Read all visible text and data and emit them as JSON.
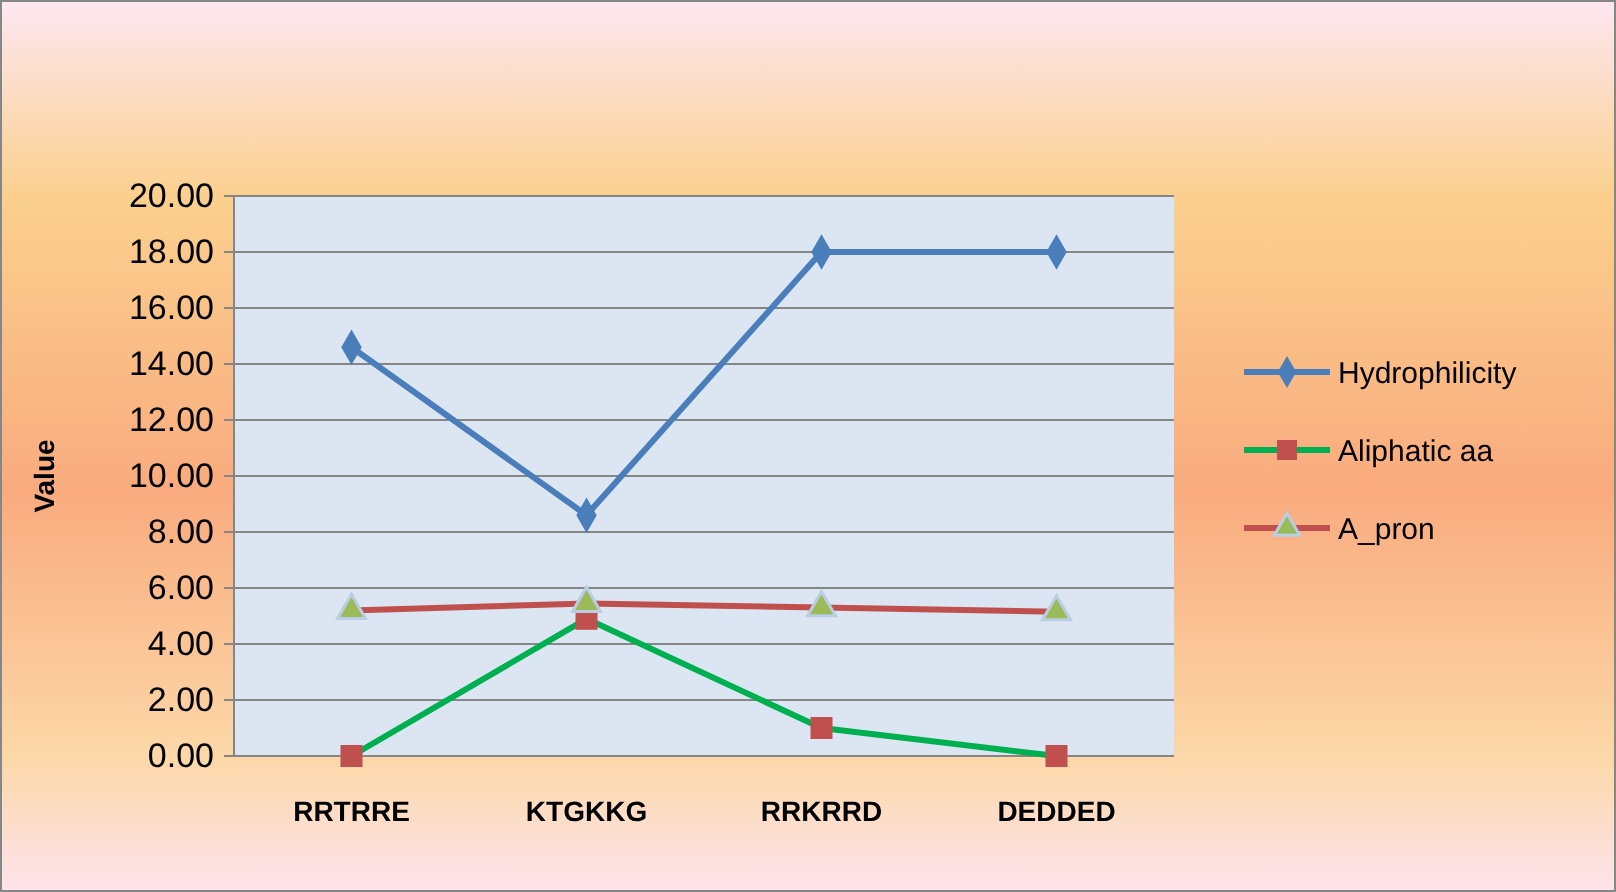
{
  "chart_data": {
    "type": "line",
    "ylabel": "Value",
    "categories": [
      "RRTRRE",
      "KTGKKG",
      "RRKRRD",
      "DEDDED"
    ],
    "series": [
      {
        "name": "Hydrophilicity",
        "color": "#4a7ebb",
        "marker": "diamond",
        "colors": [
          "#4a7ebb",
          "#4a7ebb",
          "#4a7ebb",
          "#4a7ebb"
        ],
        "values": [
          14.6,
          8.6,
          18.0,
          18.0
        ]
      },
      {
        "name": "Aliphatic aa",
        "color": "#00b050",
        "marker": "square",
        "colors": [
          "#c0504d",
          "#c0504d",
          "#c0504d",
          "#c0504d"
        ],
        "values": [
          0.0,
          4.9,
          1.0,
          0.0
        ]
      },
      {
        "name": "A_pron",
        "color": "#c0504d",
        "marker": "triangle",
        "colors": [
          "#9bbb59",
          "#9bbb59",
          "#9bbb59",
          "#9bbb59"
        ],
        "values": [
          5.2,
          5.45,
          5.3,
          5.15
        ]
      }
    ],
    "ylim": [
      0,
      20
    ],
    "yticks": [
      {
        "value": 0,
        "label": "0.00"
      },
      {
        "value": 2,
        "label": "2.00"
      },
      {
        "value": 4,
        "label": "4.00"
      },
      {
        "value": 6,
        "label": "6.00"
      },
      {
        "value": 8,
        "label": "8.00"
      },
      {
        "value": 10,
        "label": "10.00"
      },
      {
        "value": 12,
        "label": "12.00"
      },
      {
        "value": 14,
        "label": "14.00"
      },
      {
        "value": 16,
        "label": "16.00"
      },
      {
        "value": 18,
        "label": "18.00"
      },
      {
        "value": 20,
        "label": "20.00"
      }
    ],
    "grid": "y",
    "legend": "right",
    "line_style": "solid"
  }
}
